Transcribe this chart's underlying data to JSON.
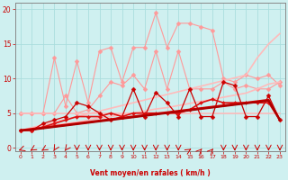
{
  "x": [
    0,
    1,
    2,
    3,
    4,
    5,
    6,
    7,
    8,
    9,
    10,
    11,
    12,
    13,
    14,
    15,
    16,
    17,
    18,
    19,
    20,
    21,
    22,
    23
  ],
  "background_color": "#cff0f0",
  "grid_color": "#aadddd",
  "xlabel": "Vent moyen/en rafales ( km/h )",
  "xlabel_color": "#cc0000",
  "tick_color": "#cc0000",
  "ylim": [
    -0.5,
    21
  ],
  "xlim": [
    -0.5,
    23.5
  ],
  "series": [
    {
      "name": "pink_jagged_high",
      "color": "#ff9999",
      "linewidth": 0.8,
      "markersize": 2.5,
      "marker": "D",
      "data": [
        5.0,
        5.0,
        5.0,
        13.0,
        6.0,
        12.5,
        6.5,
        14.0,
        14.5,
        9.5,
        14.5,
        14.5,
        19.5,
        14.5,
        18.0,
        18.0,
        17.5,
        17.0,
        10.0,
        9.5,
        10.5,
        10.0,
        10.5,
        9.0
      ]
    },
    {
      "name": "pink_jagged_mid",
      "color": "#ff9999",
      "linewidth": 0.8,
      "markersize": 2.5,
      "marker": "D",
      "data": [
        5.0,
        5.0,
        5.0,
        5.0,
        7.5,
        5.0,
        5.5,
        7.5,
        9.5,
        9.0,
        10.5,
        8.5,
        14.0,
        8.5,
        14.0,
        8.5,
        8.5,
        8.5,
        9.5,
        8.5,
        9.0,
        8.5,
        8.5,
        9.5
      ]
    },
    {
      "name": "pink_trend_upper",
      "color": "#ffbbbb",
      "linewidth": 1.2,
      "markersize": 0,
      "marker": "none",
      "data": [
        2.5,
        2.9,
        3.3,
        3.7,
        4.1,
        4.5,
        4.9,
        5.3,
        5.7,
        6.1,
        6.5,
        6.9,
        7.3,
        7.7,
        8.1,
        8.5,
        8.9,
        9.3,
        9.7,
        10.1,
        10.5,
        13.0,
        15.0,
        16.5
      ]
    },
    {
      "name": "pink_trend_lower",
      "color": "#ffbbbb",
      "linewidth": 1.2,
      "markersize": 0,
      "marker": "none",
      "data": [
        2.5,
        2.7,
        3.0,
        3.2,
        3.5,
        3.7,
        4.0,
        4.3,
        4.5,
        4.8,
        5.0,
        5.3,
        5.6,
        5.8,
        6.1,
        6.4,
        6.7,
        7.0,
        7.3,
        7.6,
        7.9,
        8.5,
        9.2,
        9.5
      ]
    },
    {
      "name": "pink_flat_baseline",
      "color": "#ffbbbb",
      "linewidth": 1.2,
      "markersize": 0,
      "marker": "none",
      "data": [
        5.0,
        5.0,
        5.0,
        5.0,
        5.0,
        5.0,
        5.0,
        5.0,
        5.0,
        5.0,
        5.0,
        5.0,
        5.0,
        5.0,
        5.0,
        5.0,
        5.0,
        5.0,
        5.0,
        5.0,
        5.0,
        5.0,
        5.0,
        5.0
      ]
    },
    {
      "name": "dark_red_jagged",
      "color": "#cc0000",
      "linewidth": 0.9,
      "markersize": 2.5,
      "marker": "D",
      "data": [
        2.5,
        2.5,
        3.5,
        4.0,
        4.5,
        6.5,
        6.0,
        5.0,
        4.0,
        4.5,
        8.5,
        4.5,
        8.0,
        6.5,
        4.5,
        8.5,
        4.5,
        4.5,
        9.5,
        9.0,
        4.5,
        4.5,
        7.5,
        4.0
      ]
    },
    {
      "name": "red_mid_trend",
      "color": "#dd1111",
      "linewidth": 1.2,
      "markersize": 2.0,
      "marker": "D",
      "data": [
        2.5,
        2.5,
        3.0,
        3.5,
        4.0,
        4.5,
        4.5,
        4.5,
        5.0,
        4.5,
        5.0,
        5.0,
        5.0,
        5.0,
        5.0,
        5.5,
        6.5,
        7.0,
        6.5,
        6.5,
        6.5,
        6.5,
        6.5,
        4.0
      ]
    },
    {
      "name": "red_trend_line",
      "color": "#cc0000",
      "linewidth": 1.8,
      "markersize": 0,
      "marker": "none",
      "data": [
        2.5,
        2.7,
        2.9,
        3.1,
        3.3,
        3.5,
        3.7,
        3.9,
        4.1,
        4.3,
        4.5,
        4.7,
        4.9,
        5.1,
        5.3,
        5.5,
        5.7,
        5.9,
        6.1,
        6.3,
        6.5,
        6.7,
        6.9,
        4.0
      ]
    },
    {
      "name": "darkest_red_trend",
      "color": "#aa0000",
      "linewidth": 1.5,
      "markersize": 0,
      "marker": "none",
      "data": [
        2.5,
        2.6,
        2.8,
        3.0,
        3.2,
        3.4,
        3.6,
        3.8,
        4.0,
        4.2,
        4.4,
        4.6,
        4.8,
        5.0,
        5.2,
        5.4,
        5.6,
        5.8,
        6.0,
        6.2,
        6.4,
        6.6,
        6.8,
        4.0
      ]
    }
  ],
  "yticks": [
    0,
    5,
    10,
    15,
    20
  ],
  "xticks": [
    0,
    1,
    2,
    3,
    4,
    5,
    6,
    7,
    8,
    9,
    10,
    11,
    12,
    13,
    14,
    15,
    16,
    17,
    18,
    19,
    20,
    21,
    22,
    23
  ],
  "figsize": [
    3.2,
    2.0
  ],
  "dpi": 100
}
